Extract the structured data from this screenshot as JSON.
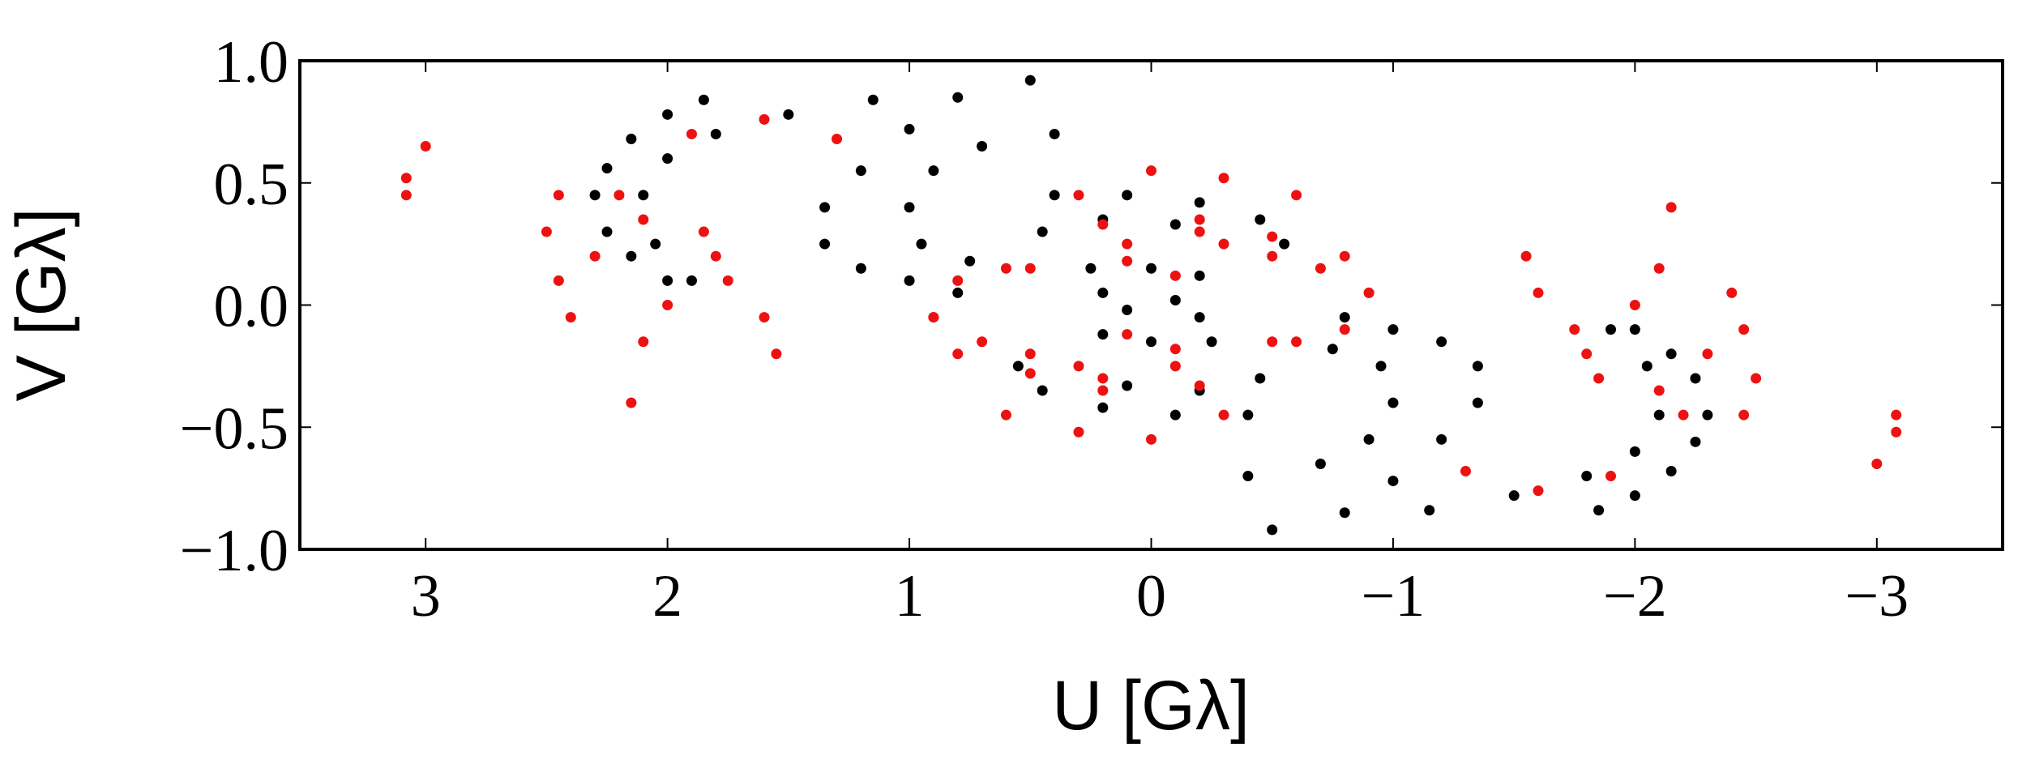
{
  "chart_data": {
    "type": "scatter",
    "xlabel": "U [Gλ]",
    "ylabel": "V [Gλ]",
    "xlim": [
      3.52,
      -3.52
    ],
    "ylim": [
      -1,
      1
    ],
    "xticks": [
      {
        "value": 3,
        "label": "3"
      },
      {
        "value": 2,
        "label": "2"
      },
      {
        "value": 1,
        "label": "1"
      },
      {
        "value": 0,
        "label": "0"
      },
      {
        "value": -1,
        "label": "−1"
      },
      {
        "value": -2,
        "label": "−2"
      },
      {
        "value": -3,
        "label": "−3"
      }
    ],
    "yticks": [
      {
        "value": -1,
        "label": "−1.0"
      },
      {
        "value": -0.5,
        "label": "−0.5"
      },
      {
        "value": 0,
        "label": "0.0"
      },
      {
        "value": 0.5,
        "label": "0.5"
      },
      {
        "value": 1,
        "label": "1.0"
      }
    ],
    "series": [
      {
        "color": "#000000",
        "x": [
          1.85,
          2.0,
          2.15,
          2.25,
          2.3,
          2.25,
          2.15,
          2.0,
          1.15,
          1.5,
          1.8,
          2.0,
          2.1,
          2.05,
          1.9,
          0.5,
          0.8,
          1.0,
          1.2,
          1.35,
          1.35,
          1.2,
          1.0,
          0.8,
          0.4,
          0.7,
          0.9,
          1.0,
          0.95,
          0.75,
          0.4,
          0.1,
          -0.2,
          -0.45,
          -0.55,
          0.45,
          0.2,
          -0.1,
          0.25,
          0,
          -0.2,
          0.2,
          -0.1,
          -1.85,
          -2.0,
          -2.15,
          -2.25,
          -2.3,
          -2.25,
          -2.15,
          -2.0,
          -1.15,
          -1.5,
          -1.8,
          -2.0,
          -2.1,
          -2.05,
          -1.9,
          -0.5,
          -0.8,
          -1.0,
          -1.2,
          -1.35,
          -1.35,
          -1.2,
          -1.0,
          -0.8,
          -0.4,
          -0.7,
          -0.9,
          -1.0,
          -0.95,
          -0.75,
          -0.4,
          -0.1,
          0.2,
          0.45,
          0.55,
          -0.45,
          -0.2,
          0.1,
          -0.25,
          0,
          0.2,
          -0.2,
          0.1
        ],
        "y": [
          0.84,
          0.78,
          0.68,
          0.56,
          0.45,
          0.3,
          0.2,
          0.1,
          0.84,
          0.78,
          0.7,
          0.6,
          0.45,
          0.25,
          0.1,
          0.92,
          0.85,
          0.72,
          0.55,
          0.4,
          0.25,
          0.15,
          0.1,
          0.05,
          0.7,
          0.65,
          0.55,
          0.4,
          0.25,
          0.18,
          0.45,
          0.45,
          0.42,
          0.35,
          0.25,
          0.3,
          0.35,
          0.33,
          0.15,
          0.15,
          0.12,
          0.05,
          0.02,
          -0.84,
          -0.78,
          -0.68,
          -0.56,
          -0.45,
          -0.3,
          -0.2,
          -0.1,
          -0.84,
          -0.78,
          -0.7,
          -0.6,
          -0.45,
          -0.25,
          -0.1,
          -0.92,
          -0.85,
          -0.72,
          -0.55,
          -0.4,
          -0.25,
          -0.15,
          -0.1,
          -0.05,
          -0.7,
          -0.65,
          -0.55,
          -0.4,
          -0.25,
          -0.18,
          -0.45,
          -0.45,
          -0.42,
          -0.35,
          -0.25,
          -0.3,
          -0.35,
          -0.33,
          -0.15,
          -0.15,
          -0.12,
          -0.05,
          -0.02
        ]
      },
      {
        "color": "#ee1111",
        "x": [
          2.45,
          2.5,
          2.45,
          2.4,
          2.3,
          2.2,
          2.1,
          2.0,
          2.1,
          2.15,
          1.9,
          1.6,
          1.3,
          1.85,
          1.75,
          1.6,
          1.55,
          1.8,
          3.08,
          3.08,
          3.0,
          0.8,
          0.9,
          0.8,
          0.5,
          0.2,
          -0.1,
          -0.6,
          -0.9,
          -0.7,
          -0.3,
          0.3,
          0,
          -0.3,
          -0.6,
          -0.5,
          0.2,
          -0.2,
          0.1,
          -0.1,
          0.5,
          -2.45,
          -2.5,
          -2.45,
          -2.4,
          -2.3,
          -2.2,
          -2.1,
          -2.0,
          -2.1,
          -2.15,
          -1.9,
          -1.6,
          -1.3,
          -1.85,
          -1.75,
          -1.6,
          -1.55,
          -1.8,
          -3.08,
          -3.08,
          -3.0,
          -0.8,
          -0.9,
          -0.8,
          -0.5,
          -0.2,
          0.1,
          0.6,
          0.9,
          0.7,
          0.3,
          -0.3,
          0,
          0.3,
          0.6,
          0.5,
          -0.2,
          0.2,
          -0.1,
          0.1,
          -0.5
        ],
        "y": [
          0.45,
          0.3,
          0.1,
          -0.05,
          0.2,
          0.45,
          0.35,
          0,
          -0.15,
          -0.4,
          0.7,
          0.76,
          0.68,
          0.3,
          0.1,
          -0.05,
          -0.2,
          0.2,
          0.45,
          0.52,
          0.65,
          0.1,
          -0.05,
          -0.2,
          -0.28,
          -0.3,
          -0.25,
          -0.15,
          0.05,
          0.15,
          0.25,
          0.45,
          0.55,
          0.52,
          0.45,
          0.2,
          0.33,
          0.35,
          0.18,
          0.12,
          0.15,
          -0.45,
          -0.3,
          -0.1,
          0.05,
          -0.2,
          -0.45,
          -0.35,
          0,
          0.15,
          0.4,
          -0.7,
          -0.76,
          -0.68,
          -0.3,
          -0.1,
          0.05,
          0.2,
          -0.2,
          -0.45,
          -0.52,
          -0.65,
          -0.1,
          0.05,
          0.2,
          0.28,
          0.3,
          0.25,
          0.15,
          -0.05,
          -0.15,
          -0.25,
          -0.45,
          -0.55,
          -0.52,
          -0.45,
          -0.2,
          -0.33,
          -0.35,
          -0.18,
          -0.12,
          -0.15
        ]
      }
    ]
  }
}
